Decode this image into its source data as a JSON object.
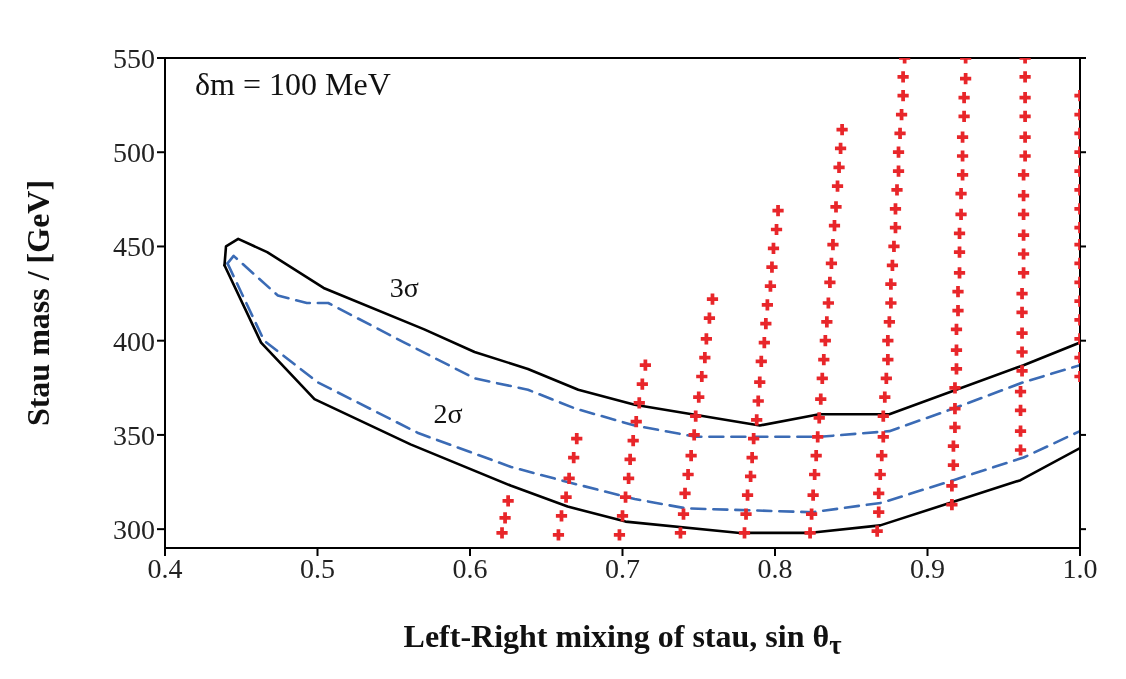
{
  "chart_data": {
    "type": "line",
    "xlabel": "Left-Right mixing of stau, sin θ$_{τ}$",
    "ylabel": "Stau mass / [GeV]",
    "xlim": [
      0.4,
      1.0
    ],
    "xticks": [
      0.4,
      0.5,
      0.6,
      0.7,
      0.8,
      0.9,
      {
        "value": 1,
        "label": "1.0"
      }
    ],
    "ylim": [
      290,
      550
    ],
    "yticks": [
      300,
      350,
      400,
      450,
      500,
      550
    ],
    "marker": "none",
    "legend": false,
    "grid": false,
    "annotations": [
      "δm = 100 MeV"
    ],
    "series": [
      {
        "name": "3σ",
        "color": "#000000",
        "line_style": "solid",
        "x": [
          0.439,
          0.44,
          0.448,
          0.467,
          0.504,
          0.57,
          0.603,
          0.638,
          0.671,
          0.708,
          0.79,
          0.829,
          0.875,
          0.963,
          1.0
        ],
        "values": [
          440,
          450,
          454,
          447,
          428,
          406,
          394,
          385,
          374,
          366,
          355,
          361,
          361,
          387,
          399
        ]
      },
      {
        "color": "#000000",
        "line_style": "solid",
        "x": [
          0.439,
          0.463,
          0.498,
          0.561,
          0.627,
          0.664,
          0.702,
          0.777,
          0.822,
          0.869,
          0.961,
          1.0
        ],
        "values": [
          440,
          399,
          369,
          345,
          323,
          312,
          304,
          298,
          298,
          302,
          326,
          343
        ]
      },
      {
        "color": "#3b6bb5",
        "line_style": "dashed",
        "x": [
          0.441,
          0.445,
          0.474,
          0.493,
          0.507,
          0.557,
          0.603,
          0.638,
          0.669,
          0.708,
          0.748,
          0.829,
          0.875,
          0.917,
          0.963,
          1.0
        ],
        "values": [
          441,
          445,
          424,
          420,
          420,
          399,
          380,
          374,
          364,
          355,
          349,
          349,
          352,
          364,
          378,
          387
        ]
      },
      {
        "name": "2σ",
        "color": "#3b6bb5",
        "line_style": "dashed",
        "x": [
          0.441,
          0.465,
          0.5,
          0.566,
          0.627,
          0.664,
          0.708,
          0.742,
          0.825,
          0.87,
          0.917,
          0.963,
          1.0
        ],
        "values": [
          441,
          400,
          378,
          351,
          333,
          325,
          316,
          311,
          309,
          314,
          326,
          338,
          352
        ]
      },
      {
        "type": "scatter",
        "color": "#e8262a",
        "marker": "cross",
        "x": [
          0.621,
          0.623,
          0.625,
          0.658,
          0.66,
          0.663,
          0.665,
          0.668,
          0.67,
          0.698,
          0.7,
          0.702,
          0.704,
          0.705,
          0.707,
          0.709,
          0.711,
          0.713,
          0.715,
          0.738,
          0.74,
          0.741,
          0.743,
          0.745,
          0.747,
          0.748,
          0.75,
          0.752,
          0.754,
          0.755,
          0.757,
          0.759,
          0.78,
          0.781,
          0.782,
          0.784,
          0.785,
          0.786,
          0.788,
          0.789,
          0.79,
          0.791,
          0.793,
          0.794,
          0.795,
          0.797,
          0.798,
          0.799,
          0.801,
          0.802,
          0.823,
          0.824,
          0.825,
          0.826,
          0.827,
          0.828,
          0.829,
          0.83,
          0.831,
          0.832,
          0.833,
          0.834,
          0.835,
          0.836,
          0.837,
          0.838,
          0.839,
          0.84,
          0.841,
          0.842,
          0.843,
          0.844,
          0.867,
          0.868,
          0.868,
          0.869,
          0.87,
          0.871,
          0.871,
          0.872,
          0.873,
          0.874,
          0.874,
          0.875,
          0.876,
          0.876,
          0.877,
          0.878,
          0.879,
          0.879,
          0.88,
          0.881,
          0.881,
          0.882,
          0.883,
          0.884,
          0.884,
          0.885,
          0.916,
          0.916,
          0.917,
          0.917,
          0.918,
          0.918,
          0.918,
          0.919,
          0.919,
          0.919,
          0.92,
          0.92,
          0.921,
          0.921,
          0.921,
          0.922,
          0.922,
          0.923,
          0.923,
          0.923,
          0.924,
          0.924,
          0.925,
          0.925,
          0.961,
          0.961,
          0.961,
          0.961,
          0.962,
          0.962,
          0.962,
          0.962,
          0.962,
          0.963,
          0.963,
          0.963,
          0.963,
          0.963,
          0.963,
          0.964,
          0.964,
          0.964,
          0.964,
          0.964,
          0.964,
          1.0,
          1.0,
          1.0,
          1.0,
          1.0,
          1.0,
          1.0,
          1.0,
          1.0,
          1.0,
          1.0,
          1.0,
          1.0,
          1.0,
          1.0,
          1.0
        ],
        "values": [
          298,
          306,
          315,
          297,
          307,
          317,
          327,
          338,
          348,
          297,
          307,
          317,
          327,
          337,
          347,
          357,
          367,
          377,
          387,
          298,
          308,
          319,
          329,
          339,
          350,
          360,
          370,
          381,
          391,
          401,
          412,
          422,
          298,
          308,
          318,
          328,
          338,
          348,
          358,
          368,
          378,
          389,
          399,
          409,
          419,
          429,
          439,
          449,
          459,
          469,
          298,
          308,
          318,
          329,
          339,
          349,
          359,
          369,
          380,
          390,
          400,
          410,
          420,
          431,
          441,
          451,
          461,
          471,
          482,
          492,
          502,
          512,
          299,
          309,
          319,
          329,
          339,
          349,
          360,
          370,
          380,
          390,
          400,
          410,
          420,
          430,
          440,
          450,
          460,
          470,
          480,
          490,
          500,
          510,
          520,
          530,
          540,
          550,
          313,
          323,
          334,
          344,
          354,
          364,
          375,
          385,
          395,
          406,
          416,
          426,
          436,
          447,
          457,
          467,
          478,
          488,
          498,
          508,
          519,
          529,
          539,
          550,
          342,
          352,
          363,
          373,
          384,
          394,
          404,
          415,
          425,
          436,
          446,
          456,
          467,
          477,
          488,
          498,
          508,
          519,
          529,
          540,
          550,
          381,
          391,
          401,
          411,
          421,
          431,
          441,
          451,
          460,
          470,
          480,
          490,
          500,
          510,
          520,
          530
        ]
      }
    ]
  }
}
